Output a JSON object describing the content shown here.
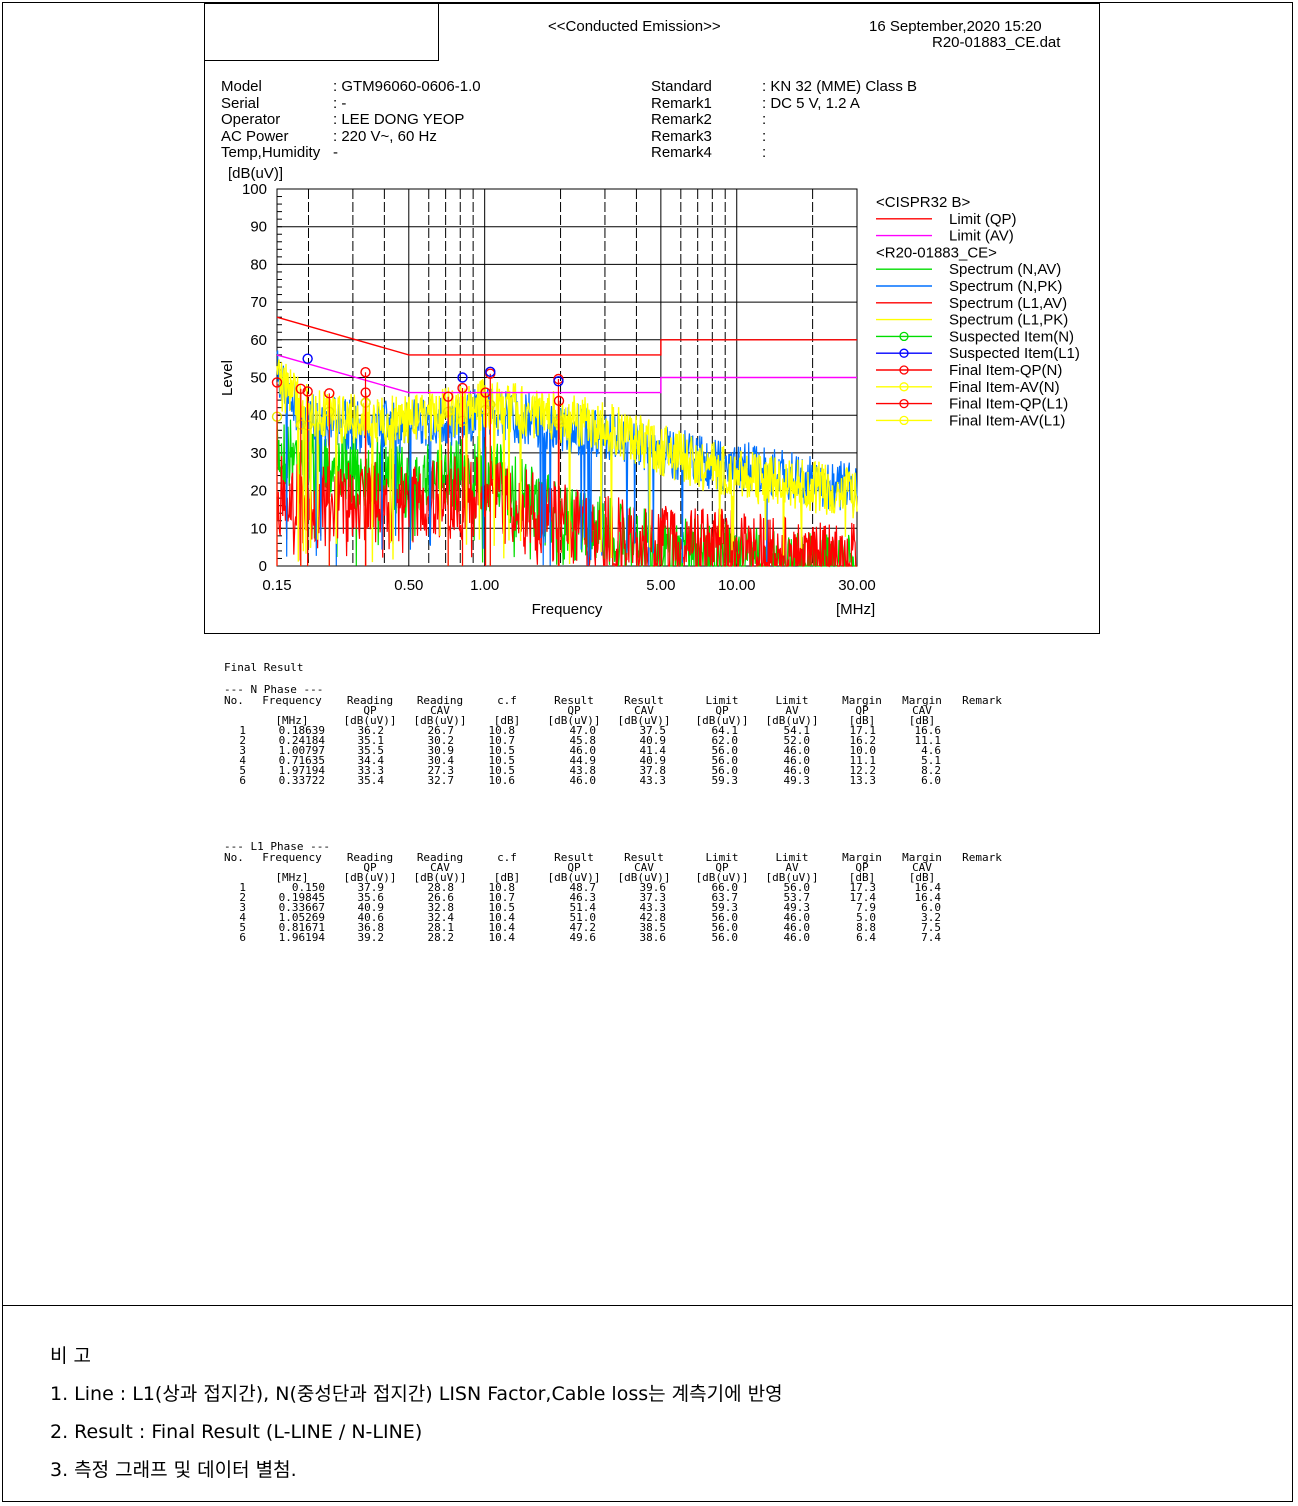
{
  "header": {
    "title": "<<Conducted Emission>>",
    "datetime": "16 September,2020 15:20",
    "file": "R20-01883_CE.dat"
  },
  "meta_left": [
    {
      "label": "Model",
      "value": ": GTM96060-0606-1.0"
    },
    {
      "label": "Serial",
      "value": ": -"
    },
    {
      "label": "Operator",
      "value": ": LEE DONG YEOP"
    },
    {
      "label": "AC Power",
      "value": ": 220 V~, 60 Hz"
    },
    {
      "label": "Temp,Humidity",
      "value": "-"
    }
  ],
  "meta_right": [
    {
      "label": "Standard",
      "value": ": KN 32 (MME) Class B"
    },
    {
      "label": "Remark1",
      "value": ": DC 5 V, 1.2 A"
    },
    {
      "label": "Remark2",
      "value": ":"
    },
    {
      "label": "Remark3",
      "value": ":"
    },
    {
      "label": "Remark4",
      "value": ":"
    }
  ],
  "chart_data": {
    "type": "line",
    "xscale": "log",
    "xlim": [
      0.15,
      30
    ],
    "ylim": [
      0,
      100
    ],
    "xlabel": "Frequency",
    "xunit": "[MHz]",
    "ylabel": "Level",
    "yunit": "[dB(uV)]",
    "xticks": [
      {
        "value": 0.15,
        "label": "0.15"
      },
      {
        "value": 0.5,
        "label": "0.50"
      },
      {
        "value": 1,
        "label": "1.00"
      },
      {
        "value": 5,
        "label": "5.00"
      },
      {
        "value": 10,
        "label": "10.00"
      },
      {
        "value": 30,
        "label": "30.00"
      }
    ],
    "yticks": [
      0,
      10,
      20,
      30,
      40,
      50,
      60,
      70,
      80,
      90,
      100
    ],
    "grid": true,
    "legend_position": "right",
    "legend_groups": [
      {
        "title": "<CISPR32 B>",
        "items": [
          {
            "name": "Limit (QP)",
            "color": "#ff0000",
            "marker": false
          },
          {
            "name": "Limit (AV)",
            "color": "#ff00ff",
            "marker": false
          }
        ]
      },
      {
        "title": "<R20-01883_CE>",
        "items": [
          {
            "name": "Spectrum (N,AV)",
            "color": "#00dd00",
            "marker": false
          },
          {
            "name": "Spectrum (N,PK)",
            "color": "#0070ff",
            "marker": false
          },
          {
            "name": "Spectrum (L1,AV)",
            "color": "#ff0000",
            "marker": false
          },
          {
            "name": "Spectrum (L1,PK)",
            "color": "#ffff00",
            "marker": false
          },
          {
            "name": "Suspected Item(N)",
            "color": "#00dd00",
            "marker": true
          },
          {
            "name": "Suspected Item(L1)",
            "color": "#0000ff",
            "marker": true
          },
          {
            "name": "Final Item-QP(N)",
            "color": "#ff0000",
            "marker": true
          },
          {
            "name": "Final Item-AV(N)",
            "color": "#ffff00",
            "marker": true
          },
          {
            "name": "Final Item-QP(L1)",
            "color": "#ff0000",
            "marker": true
          },
          {
            "name": "Final Item-AV(L1)",
            "color": "#ffff00",
            "marker": true
          }
        ]
      }
    ],
    "limits": {
      "qp": [
        [
          0.15,
          66
        ],
        [
          0.5,
          56
        ],
        [
          5,
          56
        ],
        [
          5,
          60
        ],
        [
          30,
          60
        ]
      ],
      "av": [
        [
          0.15,
          56
        ],
        [
          0.5,
          46
        ],
        [
          5,
          46
        ],
        [
          5,
          50
        ],
        [
          30,
          50
        ]
      ]
    },
    "spectrum_envelopes": {
      "n_pk": [
        [
          0.15,
          58
        ],
        [
          0.17,
          50
        ],
        [
          0.2,
          46
        ],
        [
          0.3,
          44
        ],
        [
          0.5,
          44
        ],
        [
          0.8,
          46
        ],
        [
          1.0,
          48
        ],
        [
          1.5,
          46
        ],
        [
          2,
          44
        ],
        [
          3,
          42
        ],
        [
          5,
          38
        ],
        [
          8,
          34
        ],
        [
          12,
          33
        ],
        [
          20,
          30
        ],
        [
          30,
          27
        ]
      ],
      "l1_pk": [
        [
          0.15,
          56
        ],
        [
          0.2,
          48
        ],
        [
          0.3,
          46
        ],
        [
          0.5,
          46
        ],
        [
          0.8,
          48
        ],
        [
          1.0,
          50
        ],
        [
          1.5,
          48
        ],
        [
          2,
          46
        ],
        [
          3,
          44
        ],
        [
          5,
          38
        ],
        [
          8,
          33
        ],
        [
          12,
          30
        ],
        [
          20,
          28
        ],
        [
          30,
          26
        ]
      ],
      "n_av": [
        [
          0.15,
          40
        ],
        [
          0.2,
          40
        ],
        [
          0.3,
          36
        ],
        [
          0.5,
          32
        ],
        [
          1.0,
          35
        ],
        [
          2,
          22
        ],
        [
          5,
          14
        ],
        [
          10,
          12
        ],
        [
          20,
          10
        ],
        [
          30,
          8
        ]
      ],
      "l1_av": [
        [
          0.15,
          30
        ],
        [
          0.2,
          26
        ],
        [
          0.3,
          28
        ],
        [
          0.5,
          28
        ],
        [
          1.0,
          30
        ],
        [
          2,
          22
        ],
        [
          5,
          16
        ],
        [
          10,
          15
        ],
        [
          20,
          12
        ],
        [
          30,
          12
        ]
      ]
    },
    "final_points": {
      "n_qp": [
        [
          0.18639,
          47.0
        ],
        [
          0.24184,
          45.8
        ],
        [
          1.00797,
          46.0
        ],
        [
          0.71635,
          44.9
        ],
        [
          1.97194,
          43.8
        ],
        [
          0.33722,
          46.0
        ]
      ],
      "n_av": [
        [
          0.18639,
          37.5
        ],
        [
          0.24184,
          40.9
        ],
        [
          1.00797,
          41.4
        ],
        [
          0.71635,
          40.9
        ],
        [
          1.97194,
          37.8
        ],
        [
          0.33722,
          43.3
        ]
      ],
      "l1_qp": [
        [
          0.15,
          48.7
        ],
        [
          0.19845,
          46.3
        ],
        [
          0.33667,
          51.4
        ],
        [
          1.05269,
          51.0
        ],
        [
          0.81671,
          47.2
        ],
        [
          1.96194,
          49.6
        ]
      ],
      "l1_av": [
        [
          0.15,
          39.6
        ],
        [
          0.19845,
          37.3
        ],
        [
          0.33667,
          43.3
        ],
        [
          1.05269,
          42.8
        ],
        [
          0.81671,
          38.5
        ],
        [
          1.96194,
          38.6
        ]
      ],
      "suspected_l1": [
        [
          0.19845,
          55
        ],
        [
          0.81671,
          50
        ],
        [
          1.05269,
          51.5
        ],
        [
          1.96194,
          49
        ]
      ]
    }
  },
  "final_result": {
    "title": "Final Result",
    "columns": [
      [
        "No.",
        "",
        ""
      ],
      [
        "Frequency",
        "",
        "[MHz]"
      ],
      [
        "Reading",
        "QP",
        "[dB(uV)]"
      ],
      [
        "Reading",
        "CAV",
        "[dB(uV)]"
      ],
      [
        "c.f",
        "",
        "[dB]"
      ],
      [
        "Result",
        "QP",
        "[dB(uV)]"
      ],
      [
        "Result",
        "CAV",
        "[dB(uV)]"
      ],
      [
        "Limit",
        "QP",
        "[dB(uV)]"
      ],
      [
        "Limit",
        "AV",
        "[dB(uV)]"
      ],
      [
        "Margin",
        "QP",
        "[dB]"
      ],
      [
        "Margin",
        "CAV",
        "[dB]"
      ],
      [
        "Remark",
        "",
        ""
      ]
    ],
    "phases": [
      {
        "name": "--- N Phase ---",
        "rows": [
          [
            "1",
            "0.18639",
            "36.2",
            "26.7",
            "10.8",
            "47.0",
            "37.5",
            "64.1",
            "54.1",
            "17.1",
            "16.6"
          ],
          [
            "2",
            "0.24184",
            "35.1",
            "30.2",
            "10.7",
            "45.8",
            "40.9",
            "62.0",
            "52.0",
            "16.2",
            "11.1"
          ],
          [
            "3",
            "1.00797",
            "35.5",
            "30.9",
            "10.5",
            "46.0",
            "41.4",
            "56.0",
            "46.0",
            "10.0",
            "4.6"
          ],
          [
            "4",
            "0.71635",
            "34.4",
            "30.4",
            "10.5",
            "44.9",
            "40.9",
            "56.0",
            "46.0",
            "11.1",
            "5.1"
          ],
          [
            "5",
            "1.97194",
            "33.3",
            "27.3",
            "10.5",
            "43.8",
            "37.8",
            "56.0",
            "46.0",
            "12.2",
            "8.2"
          ],
          [
            "6",
            "0.33722",
            "35.4",
            "32.7",
            "10.6",
            "46.0",
            "43.3",
            "59.3",
            "49.3",
            "13.3",
            "6.0"
          ]
        ]
      },
      {
        "name": "--- L1 Phase ---",
        "rows": [
          [
            "1",
            "0.150",
            "37.9",
            "28.8",
            "10.8",
            "48.7",
            "39.6",
            "66.0",
            "56.0",
            "17.3",
            "16.4"
          ],
          [
            "2",
            "0.19845",
            "35.6",
            "26.6",
            "10.7",
            "46.3",
            "37.3",
            "63.7",
            "53.7",
            "17.4",
            "16.4"
          ],
          [
            "3",
            "0.33667",
            "40.9",
            "32.8",
            "10.5",
            "51.4",
            "43.3",
            "59.3",
            "49.3",
            "7.9",
            "6.0"
          ],
          [
            "4",
            "1.05269",
            "40.6",
            "32.4",
            "10.4",
            "51.0",
            "42.8",
            "56.0",
            "46.0",
            "5.0",
            "3.2"
          ],
          [
            "5",
            "0.81671",
            "36.8",
            "28.1",
            "10.4",
            "47.2",
            "38.5",
            "56.0",
            "46.0",
            "8.8",
            "7.5"
          ],
          [
            "6",
            "1.96194",
            "39.2",
            "28.2",
            "10.4",
            "49.6",
            "38.6",
            "56.0",
            "46.0",
            "6.4",
            "7.4"
          ]
        ]
      }
    ]
  },
  "notes": {
    "title": "비 고",
    "items": [
      "1. Line : L1(상과 접지간), N(중성단과 접지간) LISN Factor,Cable loss는 계측기에 반영",
      "2. Result : Final Result (L-LINE / N-LINE)",
      "3. 측정 그래프 및 데이터 별첨."
    ]
  }
}
